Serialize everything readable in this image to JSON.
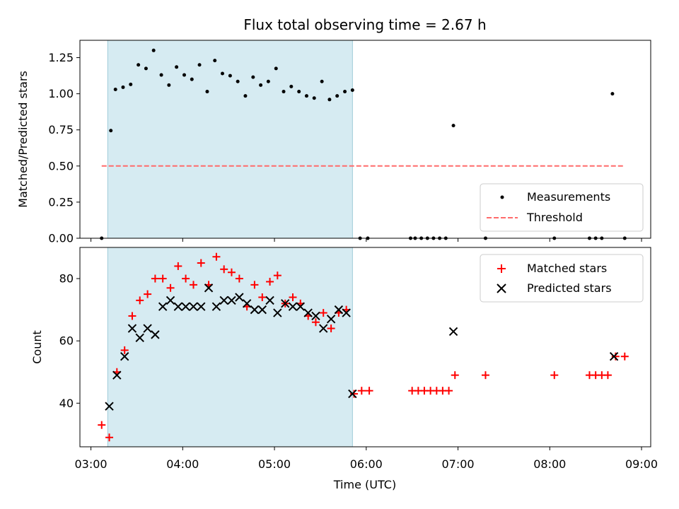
{
  "chart_data": {
    "title": "Flux total observing time = 2.67 h",
    "xlabel": "Time (UTC)",
    "x_unit": "hours UTC",
    "xlim": [
      2.88,
      9.1
    ],
    "x_ticks": [
      {
        "value": 3,
        "label": "03:00"
      },
      {
        "value": 4,
        "label": "04:00"
      },
      {
        "value": 5,
        "label": "05:00"
      },
      {
        "value": 6,
        "label": "06:00"
      },
      {
        "value": 7,
        "label": "07:00"
      },
      {
        "value": 8,
        "label": "08:00"
      },
      {
        "value": 9,
        "label": "09:00"
      }
    ],
    "highlight_span": {
      "x_start": 3.183,
      "x_end": 5.85,
      "color": "#add8e6"
    },
    "panels": [
      {
        "type": "scatter",
        "ylabel": "Matched/Predicted stars",
        "ylim": [
          0,
          1.37
        ],
        "y_ticks": [
          0.0,
          0.25,
          0.5,
          0.75,
          1.0,
          1.25
        ],
        "y_tick_labels": [
          "0.00",
          "0.25",
          "0.50",
          "0.75",
          "1.00",
          "1.25"
        ],
        "legend_position": "lower-right",
        "series": [
          {
            "name": "Measurements",
            "marker": "dot",
            "color": "#000000",
            "x": [
              3.117,
              3.267,
              3.35,
              3.433,
              3.517,
              3.6,
              3.683,
              3.767,
              3.85,
              3.933,
              4.017,
              4.1,
              4.183,
              4.267,
              4.35,
              4.433,
              4.517,
              4.6,
              4.683,
              4.767,
              4.85,
              4.933,
              5.017,
              5.1,
              5.183,
              5.267,
              5.35,
              5.433,
              5.517,
              5.6,
              5.683,
              5.767,
              5.85,
              5.933,
              6.017,
              6.483,
              6.533,
              6.6,
              6.667,
              6.733,
              6.8,
              6.867,
              6.95,
              7.3,
              8.05,
              8.433,
              8.5,
              8.567,
              8.683,
              8.817
            ],
            "y": [
              0.0,
              1.03,
              1.045,
              1.065,
              1.2,
              1.175,
              1.3,
              1.13,
              1.06,
              1.185,
              1.13,
              1.1,
              1.2,
              1.015,
              1.23,
              1.14,
              1.125,
              1.085,
              0.985,
              1.115,
              1.06,
              1.085,
              1.175,
              1.015,
              1.05,
              1.015,
              0.985,
              0.97,
              1.085,
              0.96,
              0.985,
              1.015,
              1.025,
              0.0,
              0.0,
              0.0,
              0.0,
              0.0,
              0.0,
              0.0,
              0.0,
              0.0,
              0.78,
              0.0,
              0.0,
              0.0,
              0.0,
              0.0,
              1.0,
              0.0
            ],
            "extra_points": [
              {
                "x": 3.217,
                "y": 0.745
              }
            ]
          },
          {
            "name": "Threshold",
            "type": "line",
            "style": "dashed",
            "color": "#ff6b6b",
            "x": [
              3.117,
              8.817
            ],
            "y": [
              0.5,
              0.5
            ]
          }
        ]
      },
      {
        "type": "scatter",
        "ylabel": "Count",
        "ylim": [
          26,
          90
        ],
        "y_ticks": [
          40,
          60,
          80
        ],
        "y_tick_labels": [
          "40",
          "60",
          "80"
        ],
        "legend_position": "upper-right",
        "series": [
          {
            "name": "Matched stars",
            "marker": "plus",
            "color": "#ff0000",
            "x": [
              3.117,
              3.2,
              3.283,
              3.367,
              3.45,
              3.533,
              3.617,
              3.7,
              3.783,
              3.867,
              3.95,
              4.033,
              4.117,
              4.2,
              4.283,
              4.367,
              4.45,
              4.533,
              4.617,
              4.7,
              4.783,
              4.867,
              4.95,
              5.033,
              5.117,
              5.2,
              5.283,
              5.367,
              5.45,
              5.533,
              5.617,
              5.7,
              5.783,
              5.867,
              5.95,
              6.033,
              6.5,
              6.567,
              6.633,
              6.7,
              6.767,
              6.833,
              6.9,
              6.967,
              7.3,
              8.05,
              8.433,
              8.5,
              8.567,
              8.633,
              8.717,
              8.817
            ],
            "y": [
              33,
              29,
              50,
              57,
              68,
              73,
              75,
              80,
              80,
              77,
              84,
              80,
              78,
              85,
              78,
              87,
              83,
              82,
              80,
              71,
              78,
              74,
              79,
              81,
              72,
              74,
              72,
              68,
              66,
              69,
              64,
              69,
              70,
              43,
              44,
              44,
              44,
              44,
              44,
              44,
              44,
              44,
              44,
              49,
              49,
              49,
              49,
              49,
              49,
              49,
              55,
              55
            ]
          },
          {
            "name": "Predicted stars",
            "marker": "x",
            "color": "#000000",
            "x": [
              3.2,
              3.283,
              3.367,
              3.45,
              3.533,
              3.617,
              3.7,
              3.783,
              3.867,
              3.95,
              4.033,
              4.117,
              4.2,
              4.283,
              4.367,
              4.45,
              4.533,
              4.617,
              4.7,
              4.783,
              4.867,
              4.95,
              5.033,
              5.117,
              5.2,
              5.283,
              5.367,
              5.45,
              5.533,
              5.617,
              5.7,
              5.783,
              5.85,
              6.95,
              8.7
            ],
            "y": [
              39,
              49,
              55,
              64,
              61,
              64,
              62,
              71,
              73,
              71,
              71,
              71,
              71,
              77,
              71,
              73,
              73,
              74,
              72,
              70,
              70,
              73,
              69,
              72,
              71,
              71,
              69,
              68,
              64,
              67,
              70,
              69,
              43,
              63,
              55
            ]
          }
        ]
      }
    ]
  }
}
